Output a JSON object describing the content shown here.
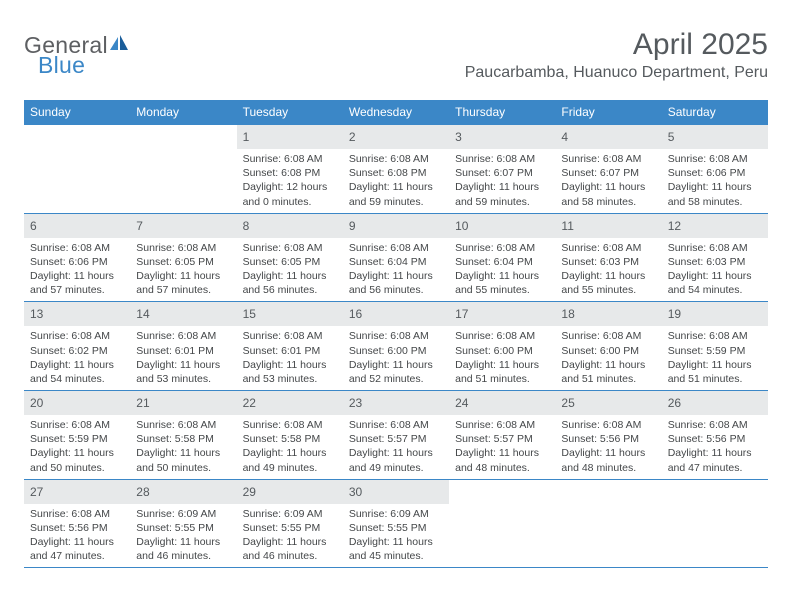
{
  "brand": {
    "part1": "General",
    "part2": "Blue"
  },
  "title": "April 2025",
  "location": "Paucarbamba, Huanuco Department, Peru",
  "colors": {
    "accent": "#3b87c7",
    "header_text": "#ffffff",
    "daynum_bg": "#e7e9ea",
    "body_text": "#444749",
    "title_text": "#555a5e"
  },
  "day_headers": [
    "Sunday",
    "Monday",
    "Tuesday",
    "Wednesday",
    "Thursday",
    "Friday",
    "Saturday"
  ],
  "weeks": [
    [
      {
        "n": "",
        "lines": [
          "",
          "",
          ""
        ]
      },
      {
        "n": "",
        "lines": [
          "",
          "",
          ""
        ]
      },
      {
        "n": "1",
        "lines": [
          "Sunrise: 6:08 AM",
          "Sunset: 6:08 PM",
          "Daylight: 12 hours and 0 minutes."
        ]
      },
      {
        "n": "2",
        "lines": [
          "Sunrise: 6:08 AM",
          "Sunset: 6:08 PM",
          "Daylight: 11 hours and 59 minutes."
        ]
      },
      {
        "n": "3",
        "lines": [
          "Sunrise: 6:08 AM",
          "Sunset: 6:07 PM",
          "Daylight: 11 hours and 59 minutes."
        ]
      },
      {
        "n": "4",
        "lines": [
          "Sunrise: 6:08 AM",
          "Sunset: 6:07 PM",
          "Daylight: 11 hours and 58 minutes."
        ]
      },
      {
        "n": "5",
        "lines": [
          "Sunrise: 6:08 AM",
          "Sunset: 6:06 PM",
          "Daylight: 11 hours and 58 minutes."
        ]
      }
    ],
    [
      {
        "n": "6",
        "lines": [
          "Sunrise: 6:08 AM",
          "Sunset: 6:06 PM",
          "Daylight: 11 hours and 57 minutes."
        ]
      },
      {
        "n": "7",
        "lines": [
          "Sunrise: 6:08 AM",
          "Sunset: 6:05 PM",
          "Daylight: 11 hours and 57 minutes."
        ]
      },
      {
        "n": "8",
        "lines": [
          "Sunrise: 6:08 AM",
          "Sunset: 6:05 PM",
          "Daylight: 11 hours and 56 minutes."
        ]
      },
      {
        "n": "9",
        "lines": [
          "Sunrise: 6:08 AM",
          "Sunset: 6:04 PM",
          "Daylight: 11 hours and 56 minutes."
        ]
      },
      {
        "n": "10",
        "lines": [
          "Sunrise: 6:08 AM",
          "Sunset: 6:04 PM",
          "Daylight: 11 hours and 55 minutes."
        ]
      },
      {
        "n": "11",
        "lines": [
          "Sunrise: 6:08 AM",
          "Sunset: 6:03 PM",
          "Daylight: 11 hours and 55 minutes."
        ]
      },
      {
        "n": "12",
        "lines": [
          "Sunrise: 6:08 AM",
          "Sunset: 6:03 PM",
          "Daylight: 11 hours and 54 minutes."
        ]
      }
    ],
    [
      {
        "n": "13",
        "lines": [
          "Sunrise: 6:08 AM",
          "Sunset: 6:02 PM",
          "Daylight: 11 hours and 54 minutes."
        ]
      },
      {
        "n": "14",
        "lines": [
          "Sunrise: 6:08 AM",
          "Sunset: 6:01 PM",
          "Daylight: 11 hours and 53 minutes."
        ]
      },
      {
        "n": "15",
        "lines": [
          "Sunrise: 6:08 AM",
          "Sunset: 6:01 PM",
          "Daylight: 11 hours and 53 minutes."
        ]
      },
      {
        "n": "16",
        "lines": [
          "Sunrise: 6:08 AM",
          "Sunset: 6:00 PM",
          "Daylight: 11 hours and 52 minutes."
        ]
      },
      {
        "n": "17",
        "lines": [
          "Sunrise: 6:08 AM",
          "Sunset: 6:00 PM",
          "Daylight: 11 hours and 51 minutes."
        ]
      },
      {
        "n": "18",
        "lines": [
          "Sunrise: 6:08 AM",
          "Sunset: 6:00 PM",
          "Daylight: 11 hours and 51 minutes."
        ]
      },
      {
        "n": "19",
        "lines": [
          "Sunrise: 6:08 AM",
          "Sunset: 5:59 PM",
          "Daylight: 11 hours and 51 minutes."
        ]
      }
    ],
    [
      {
        "n": "20",
        "lines": [
          "Sunrise: 6:08 AM",
          "Sunset: 5:59 PM",
          "Daylight: 11 hours and 50 minutes."
        ]
      },
      {
        "n": "21",
        "lines": [
          "Sunrise: 6:08 AM",
          "Sunset: 5:58 PM",
          "Daylight: 11 hours and 50 minutes."
        ]
      },
      {
        "n": "22",
        "lines": [
          "Sunrise: 6:08 AM",
          "Sunset: 5:58 PM",
          "Daylight: 11 hours and 49 minutes."
        ]
      },
      {
        "n": "23",
        "lines": [
          "Sunrise: 6:08 AM",
          "Sunset: 5:57 PM",
          "Daylight: 11 hours and 49 minutes."
        ]
      },
      {
        "n": "24",
        "lines": [
          "Sunrise: 6:08 AM",
          "Sunset: 5:57 PM",
          "Daylight: 11 hours and 48 minutes."
        ]
      },
      {
        "n": "25",
        "lines": [
          "Sunrise: 6:08 AM",
          "Sunset: 5:56 PM",
          "Daylight: 11 hours and 48 minutes."
        ]
      },
      {
        "n": "26",
        "lines": [
          "Sunrise: 6:08 AM",
          "Sunset: 5:56 PM",
          "Daylight: 11 hours and 47 minutes."
        ]
      }
    ],
    [
      {
        "n": "27",
        "lines": [
          "Sunrise: 6:08 AM",
          "Sunset: 5:56 PM",
          "Daylight: 11 hours and 47 minutes."
        ]
      },
      {
        "n": "28",
        "lines": [
          "Sunrise: 6:09 AM",
          "Sunset: 5:55 PM",
          "Daylight: 11 hours and 46 minutes."
        ]
      },
      {
        "n": "29",
        "lines": [
          "Sunrise: 6:09 AM",
          "Sunset: 5:55 PM",
          "Daylight: 11 hours and 46 minutes."
        ]
      },
      {
        "n": "30",
        "lines": [
          "Sunrise: 6:09 AM",
          "Sunset: 5:55 PM",
          "Daylight: 11 hours and 45 minutes."
        ]
      },
      {
        "n": "",
        "lines": [
          "",
          "",
          ""
        ]
      },
      {
        "n": "",
        "lines": [
          "",
          "",
          ""
        ]
      },
      {
        "n": "",
        "lines": [
          "",
          "",
          ""
        ]
      }
    ]
  ]
}
